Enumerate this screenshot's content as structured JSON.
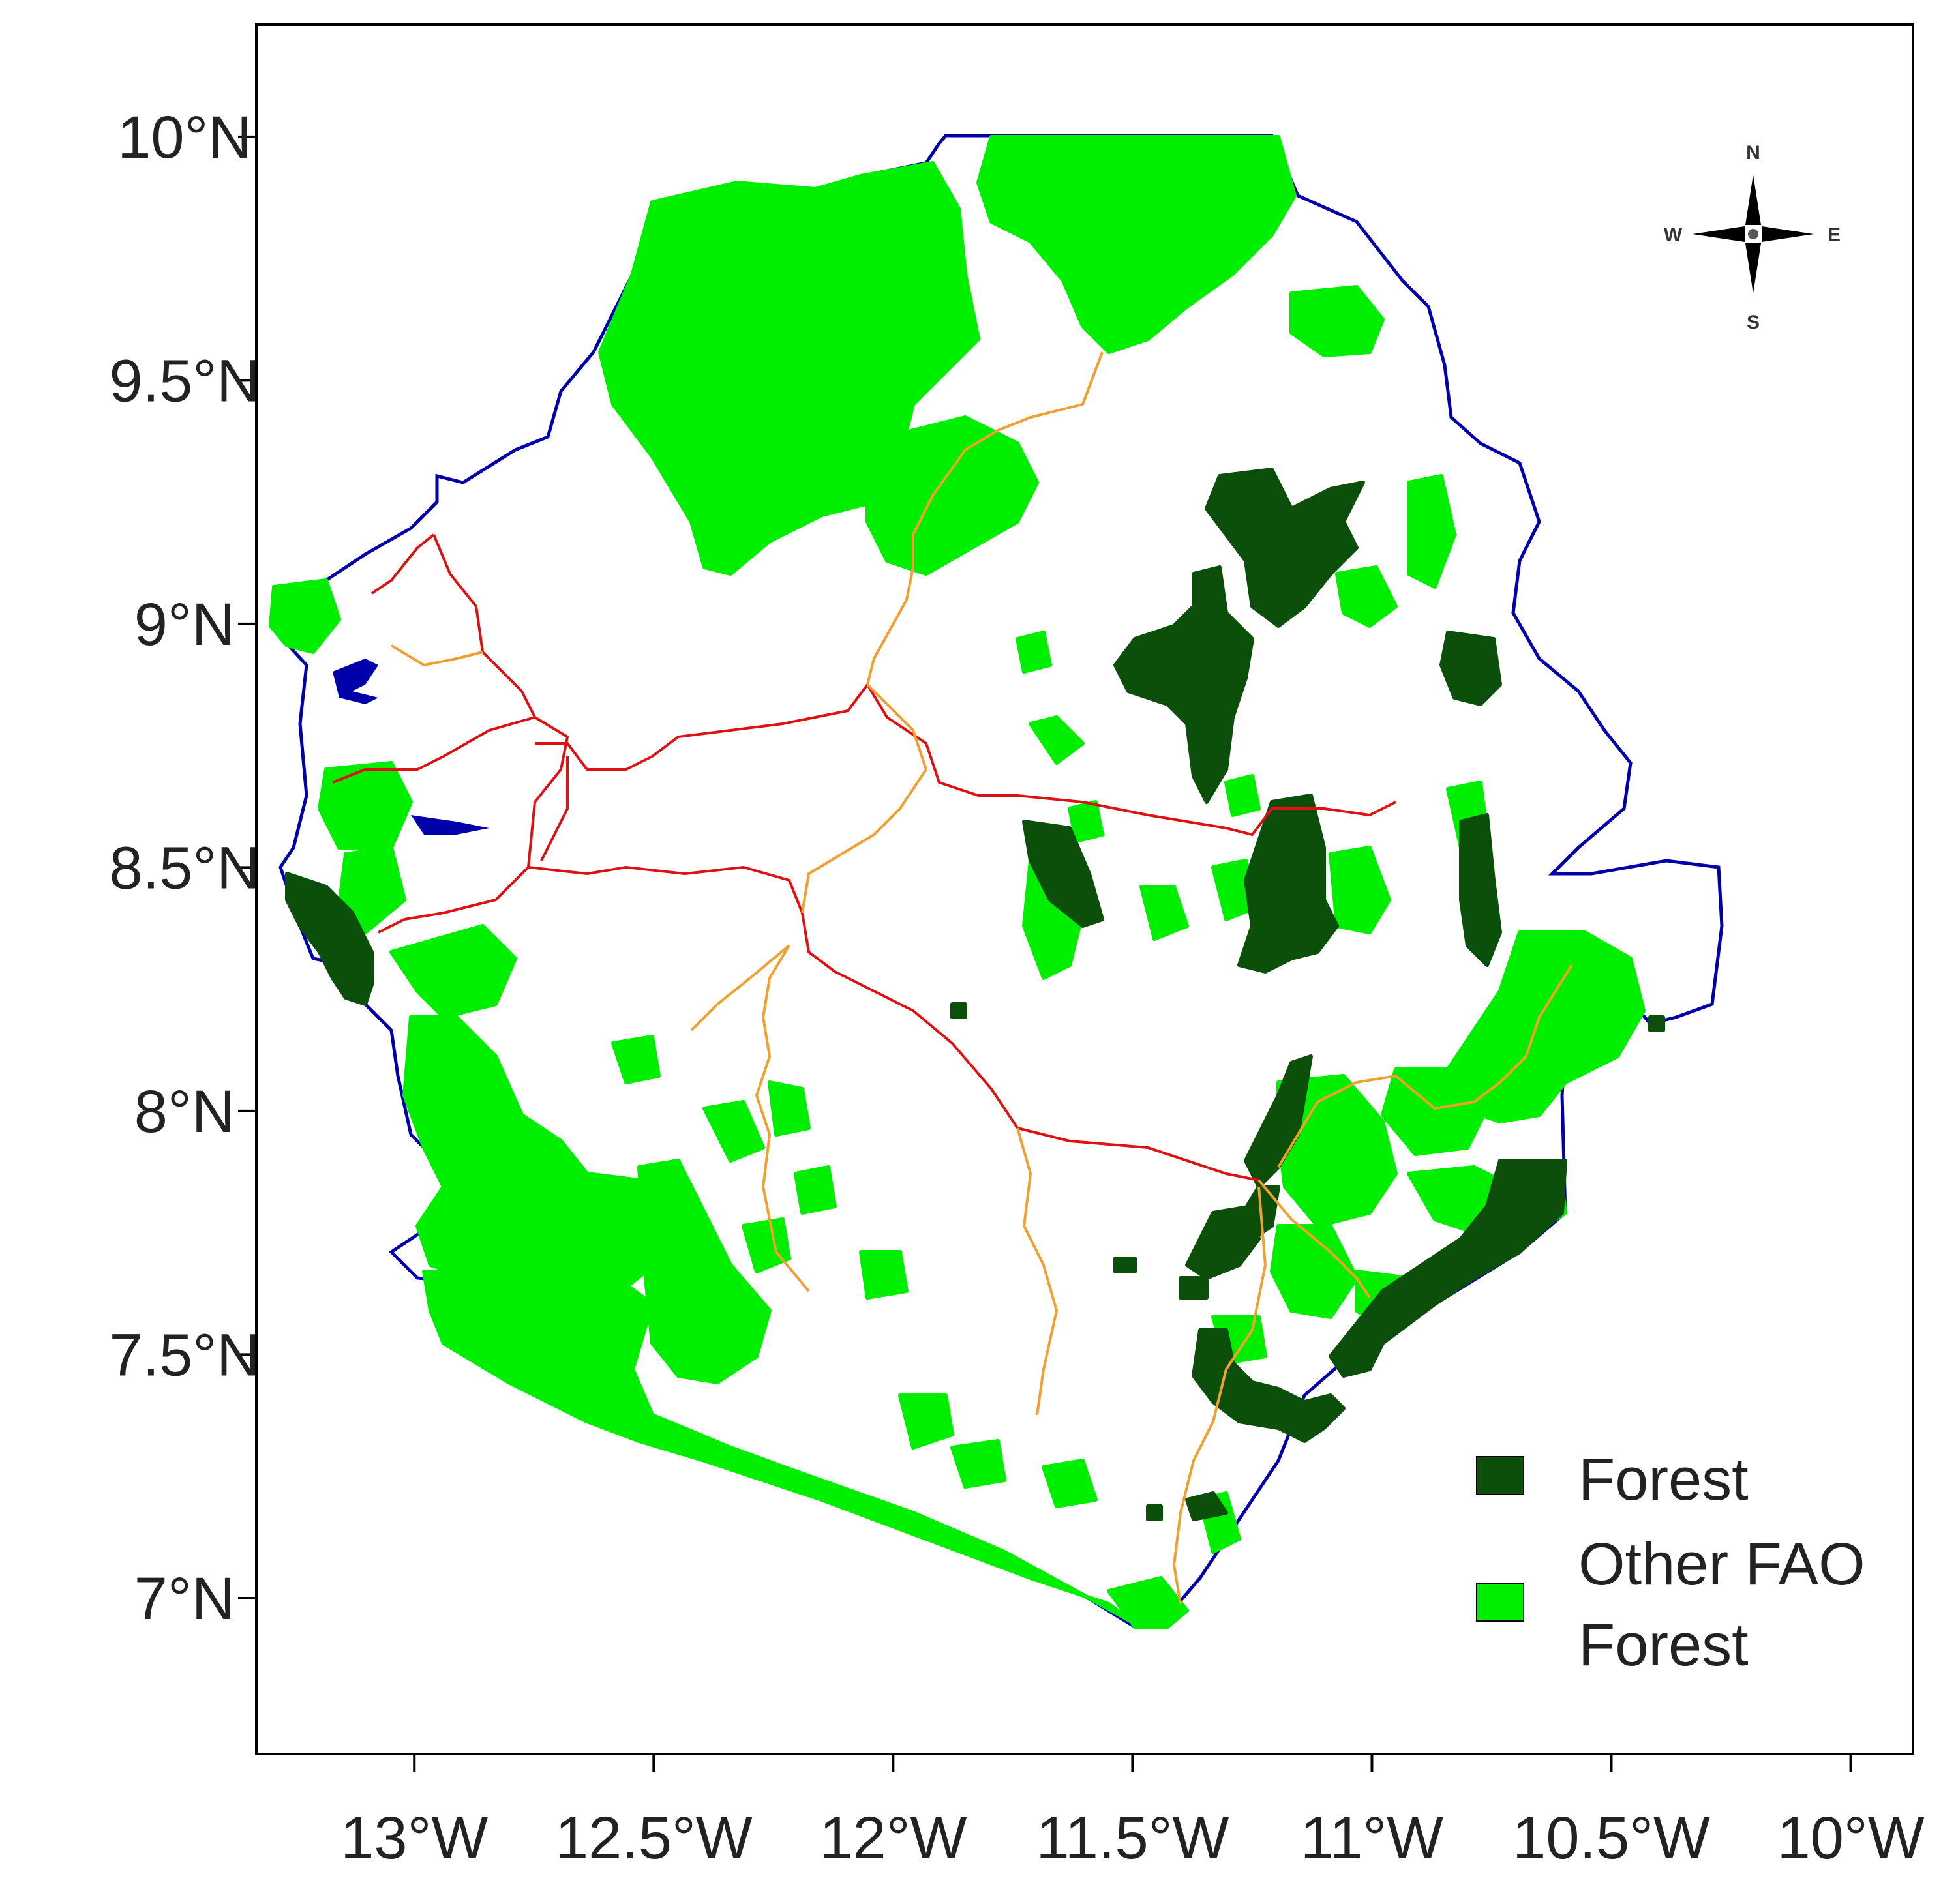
{
  "map": {
    "y_axis": {
      "ticks": [
        {
          "value": 10.0,
          "label": "10°N"
        },
        {
          "value": 9.5,
          "label": "9.5°N"
        },
        {
          "value": 9.0,
          "label": "9°N"
        },
        {
          "value": 8.5,
          "label": "8.5°N"
        },
        {
          "value": 8.0,
          "label": "8°N"
        },
        {
          "value": 7.5,
          "label": "7.5°N"
        },
        {
          "value": 7.0,
          "label": "7°N"
        }
      ],
      "range": [
        6.68,
        10.23
      ]
    },
    "x_axis": {
      "ticks": [
        {
          "value": -13.0,
          "label": "13°W"
        },
        {
          "value": -12.5,
          "label": "12.5°W"
        },
        {
          "value": -12.0,
          "label": "12°W"
        },
        {
          "value": -11.5,
          "label": "11.5°W"
        },
        {
          "value": -11.0,
          "label": "11°W"
        },
        {
          "value": -10.5,
          "label": "10.5°W"
        },
        {
          "value": -10.0,
          "label": "10°W"
        }
      ],
      "range": [
        -13.33,
        -9.87
      ]
    },
    "compass": {
      "n": "N",
      "s": "S",
      "e": "E",
      "w": "W"
    },
    "legend": {
      "items": [
        {
          "label_lines": [
            "Forest"
          ],
          "color": "#0b4f0b"
        },
        {
          "label_lines": [
            "Other FAO",
            "Forest"
          ],
          "color": "#00ee00"
        }
      ]
    },
    "colors": {
      "border": "#0000aa",
      "road_primary": "#dd1111",
      "road_secondary": "#f0a030",
      "forest": "#0b4f0b",
      "other_forest": "#00ee00"
    }
  }
}
